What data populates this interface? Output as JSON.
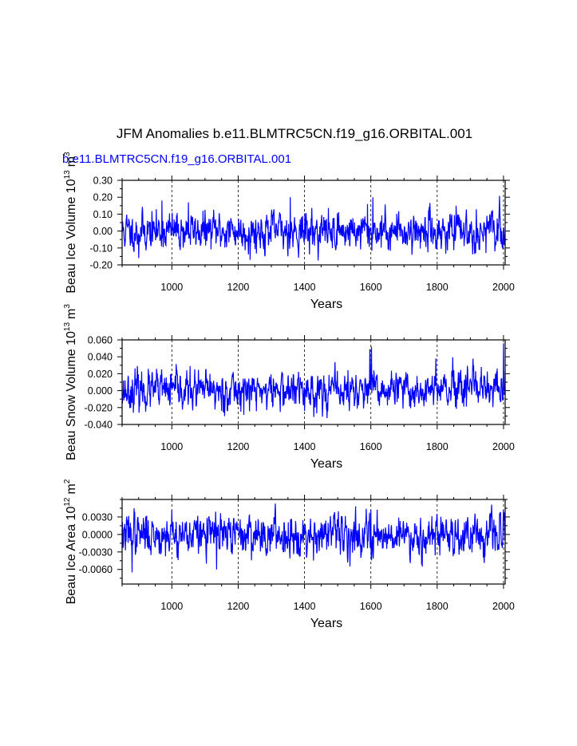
{
  "title": "JFM Anomalies b.e11.BLMTRC5CN.f19_g16.ORBITAL.001",
  "subtitle": "b.e11.BLMTRC5CN.f19_g16.ORBITAL.001",
  "line_color": "#0000ff",
  "chart_data": [
    {
      "type": "line",
      "name": "Beau Ice Volume",
      "ylabel": "Beau Ice Volume 10^13 m^3",
      "ylabel_base": "Beau Ice Volume 10",
      "ylabel_exp": "13",
      "ylabel_unit": "m",
      "ylabel_unit_exp": "3",
      "xlabel": "Years",
      "xlim": [
        850,
        2005
      ],
      "ylim": [
        -0.2,
        0.3
      ],
      "xticks": [
        1000,
        1200,
        1400,
        1600,
        1800,
        2000
      ],
      "yticks": [
        -0.2,
        -0.1,
        0.0,
        0.1,
        0.2,
        0.3
      ],
      "ytick_labels": [
        "-0.20",
        "-0.10",
        "0.00",
        "0.10",
        "0.20",
        "0.30"
      ],
      "yminor": 0.05,
      "series": {
        "x_start": 850,
        "x_end": 2005,
        "mean": 0.0,
        "std": 0.055,
        "peaks": [
          [
            1357,
            0.2
          ],
          [
            1606,
            0.2
          ],
          [
            1590,
            0.16
          ],
          [
            1050,
            0.17
          ],
          [
            970,
            0.18
          ],
          [
            1236,
            -0.17
          ],
          [
            900,
            -0.16
          ]
        ]
      }
    },
    {
      "type": "line",
      "name": "Beau Snow Volume",
      "ylabel": "Beau Snow Volume 10^13 m^3",
      "ylabel_base": "Beau Snow Volume 10",
      "ylabel_exp": "13",
      "ylabel_unit": "m",
      "ylabel_unit_exp": "3",
      "xlabel": "Years",
      "xlim": [
        850,
        2005
      ],
      "ylim": [
        -0.04,
        0.06
      ],
      "xticks": [
        1000,
        1200,
        1400,
        1600,
        1800,
        2000
      ],
      "yticks": [
        -0.04,
        -0.02,
        0.0,
        0.02,
        0.04,
        0.06
      ],
      "ytick_labels": [
        "-0.040",
        "-0.020",
        "0.000",
        "0.020",
        "0.040",
        "0.060"
      ],
      "yminor": 0.01,
      "series": {
        "x_start": 850,
        "x_end": 2005,
        "mean": 0.0,
        "std": 0.011,
        "peaks": [
          [
            1602,
            0.052
          ],
          [
            1597,
            0.049
          ],
          [
            1796,
            0.038
          ],
          [
            2000,
            0.056
          ],
          [
            1150,
            -0.024
          ],
          [
            1400,
            -0.024
          ]
        ]
      }
    },
    {
      "type": "line",
      "name": "Beau Ice Area",
      "ylabel": "Beau Ice Area 10^12 m^2",
      "ylabel_base": "Beau Ice Area 10",
      "ylabel_exp": "12",
      "ylabel_unit": "m",
      "ylabel_unit_exp": "2",
      "xlabel": "Years",
      "xlim": [
        850,
        2005
      ],
      "ylim": [
        -0.0085,
        0.006
      ],
      "xticks": [
        1000,
        1200,
        1400,
        1600,
        1800,
        2000
      ],
      "yticks": [
        -0.006,
        -0.003,
        0.0,
        0.003
      ],
      "ytick_labels": [
        "-0.0060",
        "-0.0030",
        "0.0000",
        "0.0030"
      ],
      "yminor": 0.0015,
      "series": {
        "x_start": 850,
        "x_end": 2005,
        "mean": 0.0,
        "std": 0.0017,
        "peaks": [
          [
            886,
            0.0045
          ],
          [
            1000,
            0.0042
          ],
          [
            1600,
            0.0042
          ],
          [
            2000,
            0.0042
          ],
          [
            880,
            -0.0065
          ],
          [
            1135,
            -0.006
          ],
          [
            1755,
            -0.0055
          ]
        ]
      }
    }
  ]
}
